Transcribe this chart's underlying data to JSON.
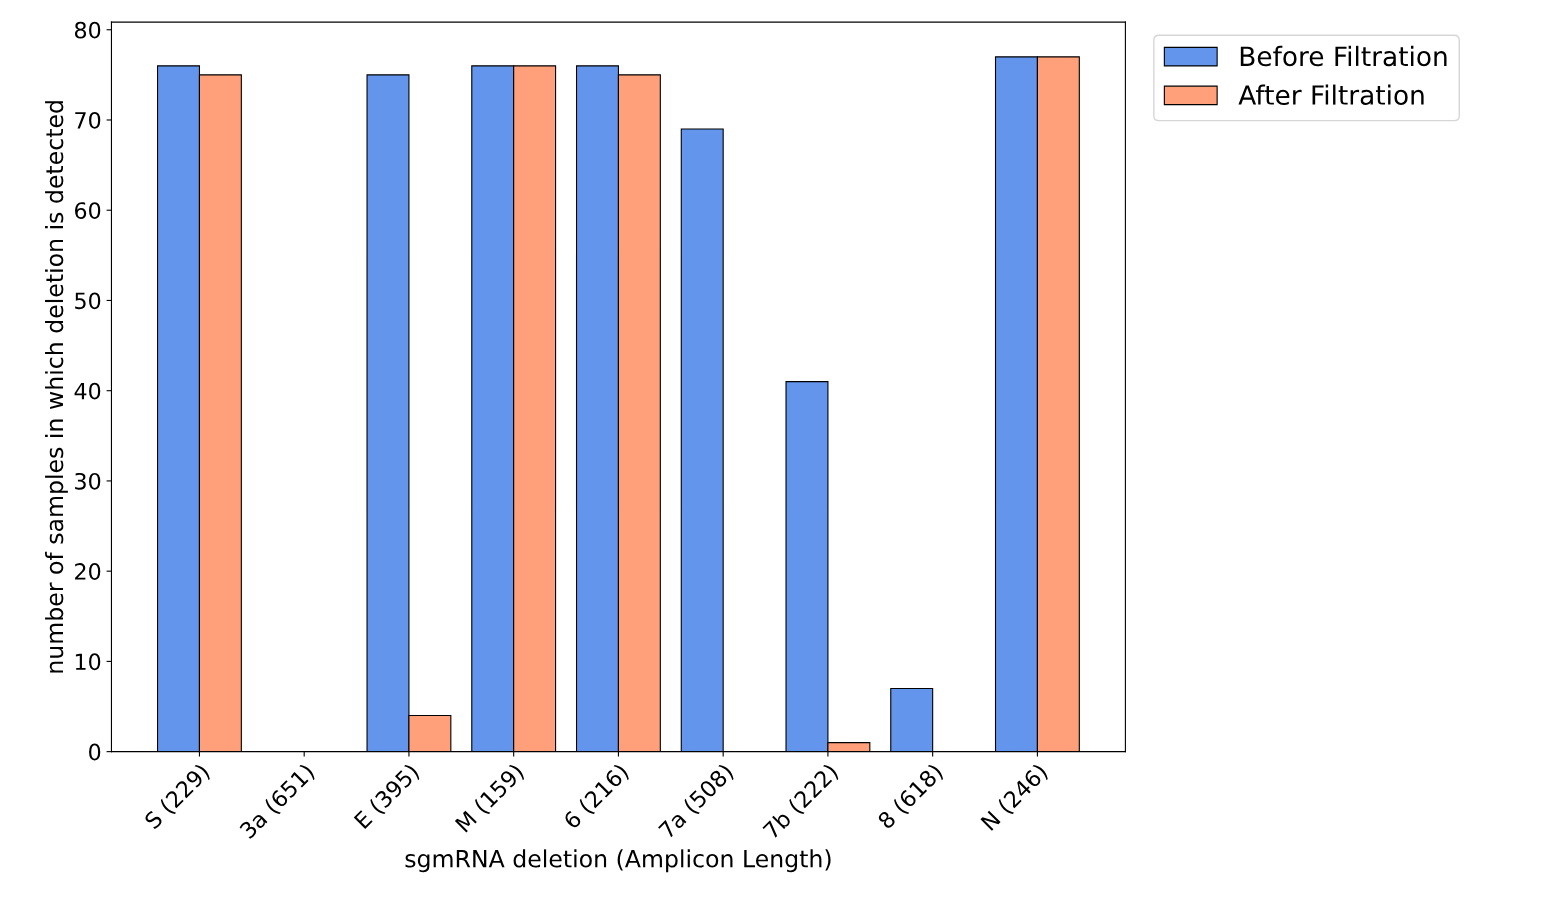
{
  "chart_data": {
    "type": "bar",
    "xlabel": "sgmRNA deletion (Amplicon Length)",
    "ylabel": "number of samples in which deletion is detected",
    "categories": [
      "S (229)",
      "3a (651)",
      "E (395)",
      "M (159)",
      "6 (216)",
      "7a (508)",
      "7b (222)",
      "8 (618)",
      "N (246)"
    ],
    "series": [
      {
        "name": "Before Filtration",
        "color": "#6495ed",
        "values": [
          76,
          0,
          75,
          76,
          76,
          69,
          41,
          7,
          77
        ]
      },
      {
        "name": "After Filtration",
        "color": "#ffa07a",
        "values": [
          75,
          0,
          4,
          76,
          75,
          0,
          1,
          0,
          77
        ]
      }
    ],
    "ylim": [
      0,
      80.85
    ],
    "yticks": [
      0,
      10,
      20,
      30,
      40,
      50,
      60,
      70,
      80
    ],
    "grid": false,
    "legend": "top right"
  }
}
